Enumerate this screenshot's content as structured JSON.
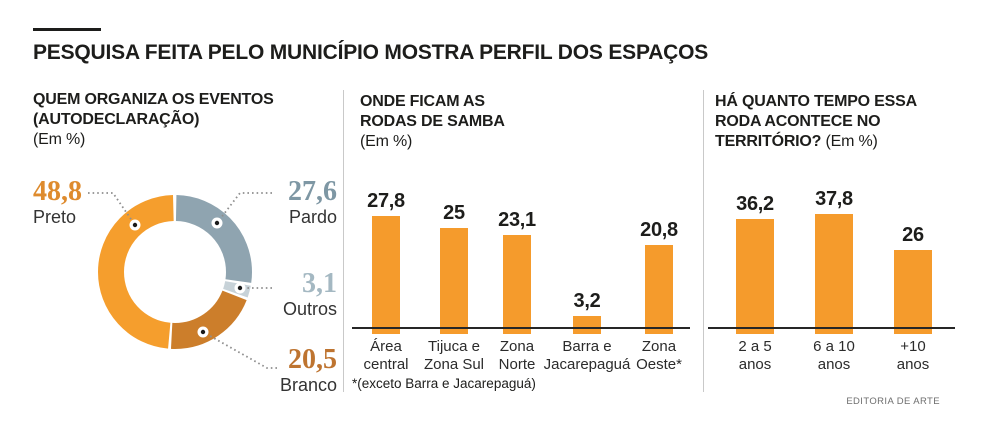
{
  "page": {
    "title": "PESQUISA FEITA PELO MUNICÍPIO MOSTRA PERFIL DOS ESPAÇOS",
    "credit": "EDITORIA DE ARTE"
  },
  "panels": {
    "donut": {
      "heading_line1": "QUEM ORGANIZA OS EVENTOS",
      "heading_line2": "(AUTODECLARAÇÃO)",
      "subheading": "(Em %)"
    },
    "location": {
      "heading_line1": "ONDE FICAM AS",
      "heading_line2": "RODAS DE SAMBA",
      "subheading": "(Em %)"
    },
    "duration": {
      "heading_line1": "HÁ QUANTO TEMPO ESSA",
      "heading_line2": "RODA ACONTECE NO",
      "heading_line3": "TERRITÓRIO?",
      "subheading": "(Em %)"
    }
  },
  "chart_data": [
    {
      "id": "organizers-donut",
      "type": "pie",
      "donut": true,
      "title": "QUEM ORGANIZA OS EVENTOS (AUTODECLARAÇÃO)",
      "unit": "%",
      "start": "top",
      "direction": "clockwise",
      "slices": [
        {
          "label": "Pardo",
          "value": 27.6,
          "display": "27,6",
          "color": "#8FA4B0",
          "number_color": "#7E97A4"
        },
        {
          "label": "Outros",
          "value": 3.1,
          "display": "3,1",
          "color": "#C7D2D8",
          "number_color": "#A4B8C2"
        },
        {
          "label": "Branco",
          "value": 20.5,
          "display": "20,5",
          "color": "#CC7E2B",
          "number_color": "#BE7430"
        },
        {
          "label": "Preto",
          "value": 48.8,
          "display": "48,8",
          "color": "#F59E2D",
          "number_color": "#DE8B2E"
        }
      ]
    },
    {
      "id": "locations-bar",
      "type": "bar",
      "title": "ONDE FICAM AS RODAS DE SAMBA",
      "unit": "%",
      "ylim": [
        0,
        38
      ],
      "grid": false,
      "bar_color": "#F59B2C",
      "categories": [
        [
          "Área",
          "central"
        ],
        [
          "Tijuca e",
          "Zona Sul"
        ],
        [
          "Zona",
          "Norte"
        ],
        [
          "Barra e",
          "Jacarepaguá"
        ],
        [
          "Zona",
          "Oeste*"
        ]
      ],
      "values": [
        27.8,
        25,
        23.1,
        3.2,
        20.8
      ],
      "display_values": [
        "27,8",
        "25",
        "23,1",
        "3,2",
        "20,8"
      ],
      "footnote": "*(exceto Barra e Jacarepaguá)"
    },
    {
      "id": "duration-bar",
      "type": "bar",
      "title": "HÁ QUANTO TEMPO ESSA RODA ACONTECE NO TERRITÓRIO?",
      "unit": "%",
      "ylim": [
        0,
        50
      ],
      "grid": false,
      "bar_color": "#F59B2C",
      "categories": [
        [
          "2 a 5",
          "anos"
        ],
        [
          "6 a 10",
          "anos"
        ],
        [
          "+10",
          "anos"
        ]
      ],
      "values": [
        36.2,
        37.8,
        26
      ],
      "display_values": [
        "36,2",
        "37,8",
        "26"
      ]
    }
  ]
}
